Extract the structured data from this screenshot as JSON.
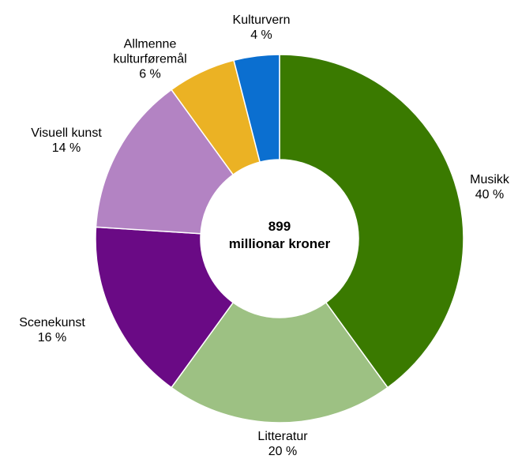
{
  "chart_data": {
    "type": "donut",
    "categories": [
      "Musikk",
      "Litteratur",
      "Scenekunst",
      "Visuell kunst",
      "Allmenne kulturføremål",
      "Kulturvern"
    ],
    "values": [
      40,
      20,
      16,
      14,
      6,
      4
    ],
    "value_labels": [
      "40 %",
      "20 %",
      "16 %",
      "14 %",
      "6 %",
      "4 %"
    ],
    "colors": [
      "#3a7a00",
      "#9dc183",
      "#6a0a85",
      "#b383c3",
      "#ebb224",
      "#0b6fd0"
    ],
    "total": 899,
    "total_label": "millionar kroner"
  }
}
